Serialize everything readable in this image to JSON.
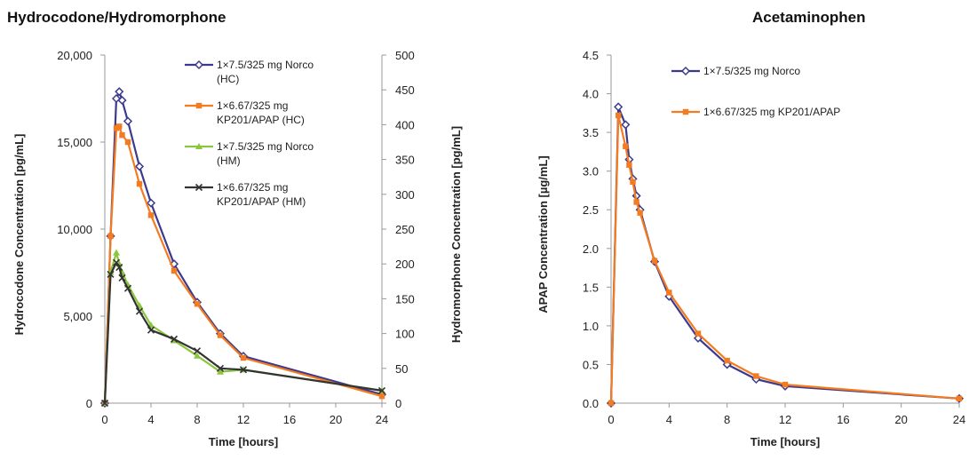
{
  "chart_data": [
    {
      "type": "line",
      "title": "Hydrocodone/Hydromorphone",
      "xlabel": "Time [hours]",
      "ylabel": "Hydrocodone Concentration [pg/mL]",
      "y2label": "Hydromorphone Concentration [pg/mL]",
      "xlim": [
        0,
        24
      ],
      "ylim": [
        0,
        20000
      ],
      "y2lim": [
        0,
        500
      ],
      "x_ticks": [
        "0",
        "4",
        "8",
        "12",
        "16",
        "20",
        "24"
      ],
      "y_ticks": [
        "0",
        "5,000",
        "10,000",
        "15,000",
        "20,000"
      ],
      "y2_ticks": [
        "0",
        "50",
        "100",
        "150",
        "200",
        "250",
        "300",
        "350",
        "400",
        "450",
        "500"
      ],
      "grid": false,
      "legend_position": "top-right",
      "series": [
        {
          "name_lines": [
            "1×7.5/325 mg Norco",
            "(HC)"
          ],
          "axis": "left",
          "color": "#3b3a8f",
          "marker": "diamond-open",
          "x": [
            0,
            0.5,
            1.0,
            1.25,
            1.5,
            2.0,
            3.0,
            4.0,
            6.0,
            8.0,
            10.0,
            12.0,
            24.0
          ],
          "y": [
            0,
            9600,
            17500,
            17900,
            17400,
            16200,
            13600,
            11500,
            8000,
            5800,
            4000,
            2700,
            500
          ]
        },
        {
          "name_lines": [
            "1×6.67/325 mg",
            "KP201/APAP (HC)"
          ],
          "axis": "left",
          "color": "#f47b20",
          "marker": "square",
          "x": [
            0,
            0.5,
            1.0,
            1.25,
            1.5,
            2.0,
            3.0,
            4.0,
            6.0,
            8.0,
            10.0,
            12.0,
            24.0
          ],
          "y": [
            0,
            9600,
            15800,
            15900,
            15400,
            15000,
            12600,
            10800,
            7600,
            5700,
            3900,
            2600,
            400
          ]
        },
        {
          "name_lines": [
            "1×7.5/325 mg Norco",
            "(HM)"
          ],
          "axis": "right",
          "color": "#8cc63f",
          "marker": "triangle",
          "x": [
            0,
            0.5,
            1.0,
            1.25,
            1.5,
            2.0,
            3.0,
            4.0,
            6.0,
            8.0,
            10.0,
            12.0,
            24.0
          ],
          "y": [
            0,
            188,
            216,
            200,
            188,
            170,
            140,
            112,
            90,
            68,
            45,
            48,
            18
          ]
        },
        {
          "name_lines": [
            "1×6.67/325 mg",
            "KP201/APAP (HM)"
          ],
          "axis": "right",
          "color": "#333333",
          "marker": "x",
          "x": [
            0,
            0.5,
            1.0,
            1.25,
            1.5,
            2.0,
            3.0,
            4.0,
            6.0,
            8.0,
            10.0,
            12.0,
            24.0
          ],
          "y": [
            0,
            185,
            202,
            195,
            180,
            165,
            132,
            105,
            92,
            75,
            50,
            48,
            18
          ]
        }
      ]
    },
    {
      "type": "line",
      "title": "Acetaminophen",
      "xlabel": "Time [hours]",
      "ylabel": "APAP Concentration [µg/mL]",
      "xlim": [
        0,
        24
      ],
      "ylim": [
        0,
        4.5
      ],
      "x_ticks": [
        "0",
        "4",
        "8",
        "12",
        "16",
        "20",
        "24"
      ],
      "y_ticks": [
        "0.0",
        "0.5",
        "1.0",
        "1.5",
        "2.0",
        "2.5",
        "3.0",
        "3.5",
        "4.0",
        "4.5"
      ],
      "grid": false,
      "legend_position": "top-right",
      "series": [
        {
          "name_lines": [
            "1×7.5/325 mg Norco"
          ],
          "color": "#3b3a8f",
          "marker": "diamond-open",
          "x": [
            0,
            0.5,
            1.0,
            1.25,
            1.5,
            1.75,
            2.0,
            3.0,
            4.0,
            6.0,
            8.0,
            10.0,
            12.0,
            24.0
          ],
          "y": [
            0,
            3.83,
            3.6,
            3.15,
            2.9,
            2.68,
            2.5,
            1.83,
            1.38,
            0.84,
            0.5,
            0.31,
            0.22,
            0.06
          ]
        },
        {
          "name_lines": [
            "1×6.67/325 mg KP201/APAP"
          ],
          "color": "#f47b20",
          "marker": "square",
          "x": [
            0,
            0.5,
            1.0,
            1.25,
            1.5,
            1.75,
            2.0,
            3.0,
            4.0,
            6.0,
            8.0,
            10.0,
            12.0,
            24.0
          ],
          "y": [
            0,
            3.72,
            3.32,
            3.08,
            2.86,
            2.6,
            2.46,
            1.84,
            1.43,
            0.9,
            0.55,
            0.35,
            0.24,
            0.06
          ]
        }
      ]
    }
  ]
}
